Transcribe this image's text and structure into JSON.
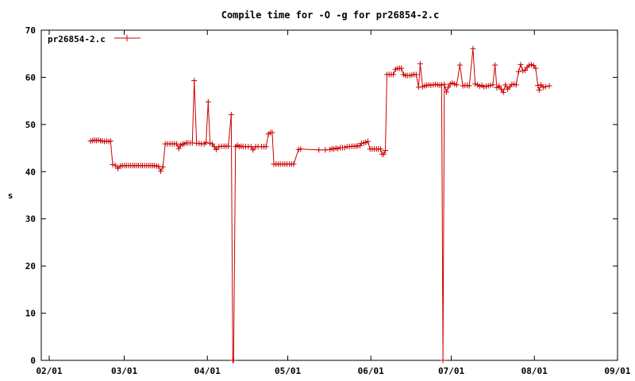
{
  "chart_data": {
    "type": "line",
    "title": "Compile time for -O -g for pr26854-2.c",
    "xlabel": "",
    "ylabel": "s",
    "ylim": [
      0,
      70
    ],
    "y_ticks": [
      "0",
      "10",
      "20",
      "30",
      "40",
      "50",
      "60",
      "70"
    ],
    "x_ticks": [
      "02/01",
      "03/01",
      "04/01",
      "05/01",
      "06/01",
      "07/01",
      "08/01",
      "09/01"
    ],
    "grid": false,
    "legend_position": "top-left",
    "series": [
      {
        "name": "pr26854-2.c",
        "color": "#cc0000",
        "points": [
          [
            15.4,
            46.5
          ],
          [
            16.2,
            46.6
          ],
          [
            16.9,
            46.7
          ],
          [
            17.6,
            46.6
          ],
          [
            18.3,
            46.7
          ],
          [
            19.1,
            46.6
          ],
          [
            19.8,
            46.5
          ],
          [
            20.6,
            46.4
          ],
          [
            21.4,
            46.5
          ],
          [
            22.2,
            46.4
          ],
          [
            22.9,
            46.5
          ],
          [
            23.7,
            41.5
          ],
          [
            24.6,
            41.4
          ],
          [
            25.6,
            40.7
          ],
          [
            26.6,
            41.2
          ],
          [
            27.3,
            41.3
          ],
          [
            28.1,
            41.3
          ],
          [
            28.8,
            41.3
          ],
          [
            29.6,
            41.3
          ],
          [
            30.4,
            41.3
          ],
          [
            31.2,
            41.3
          ],
          [
            31.9,
            41.3
          ],
          [
            32.6,
            41.3
          ],
          [
            33.3,
            41.3
          ],
          [
            34.1,
            41.3
          ],
          [
            34.8,
            41.3
          ],
          [
            35.6,
            41.3
          ],
          [
            36.4,
            41.3
          ],
          [
            37.2,
            41.3
          ],
          [
            37.9,
            41.3
          ],
          [
            38.6,
            41.3
          ],
          [
            39.3,
            41.3
          ],
          [
            40.1,
            41.2
          ],
          [
            40.8,
            41.1
          ],
          [
            41.6,
            40.1
          ],
          [
            42.4,
            41.0
          ],
          [
            43.3,
            45.9
          ],
          [
            44.1,
            45.9
          ],
          [
            45.0,
            45.9
          ],
          [
            45.9,
            45.9
          ],
          [
            46.7,
            45.9
          ],
          [
            47.5,
            45.9
          ],
          [
            48.3,
            44.9
          ],
          [
            49.0,
            45.6
          ],
          [
            49.7,
            45.8
          ],
          [
            50.3,
            45.9
          ],
          [
            51.1,
            46.1
          ],
          [
            51.8,
            46.1
          ],
          [
            52.6,
            46.1
          ],
          [
            53.4,
            46.1
          ],
          [
            54.1,
            59.3
          ],
          [
            55.0,
            46.0
          ],
          [
            55.9,
            46.0
          ],
          [
            56.8,
            45.9
          ],
          [
            57.8,
            45.9
          ],
          [
            58.5,
            46.2
          ],
          [
            59.3,
            54.8
          ],
          [
            60.0,
            46.0
          ],
          [
            60.8,
            45.9
          ],
          [
            61.6,
            45.3
          ],
          [
            62.3,
            44.7
          ],
          [
            63.3,
            45.3
          ],
          [
            64.3,
            45.4
          ],
          [
            65.2,
            45.4
          ],
          [
            66.0,
            45.4
          ],
          [
            66.8,
            45.4
          ],
          [
            67.9,
            52.1
          ],
          [
            68.5,
            0.0
          ],
          [
            68.8,
            0.0
          ],
          [
            69.5,
            45.3
          ],
          [
            70.2,
            45.6
          ],
          [
            70.9,
            45.3
          ],
          [
            71.6,
            45.4
          ],
          [
            72.3,
            45.3
          ],
          [
            73.3,
            45.3
          ],
          [
            74.3,
            45.3
          ],
          [
            75.3,
            45.3
          ],
          [
            76.0,
            44.6
          ],
          [
            77.0,
            45.3
          ],
          [
            77.9,
            45.3
          ],
          [
            79.2,
            45.3
          ],
          [
            80.1,
            45.3
          ],
          [
            80.9,
            45.3
          ],
          [
            81.8,
            48.0
          ],
          [
            82.6,
            48.3
          ],
          [
            83.2,
            48.3
          ],
          [
            83.8,
            41.6
          ],
          [
            84.6,
            41.6
          ],
          [
            85.4,
            41.6
          ],
          [
            86.2,
            41.6
          ],
          [
            87.1,
            41.6
          ],
          [
            87.9,
            41.6
          ],
          [
            88.7,
            41.6
          ],
          [
            89.6,
            41.6
          ],
          [
            90.4,
            41.6
          ],
          [
            91.2,
            41.6
          ],
          [
            93.0,
            44.7
          ],
          [
            93.8,
            44.8
          ],
          [
            100.6,
            44.6
          ],
          [
            103.0,
            44.6
          ],
          [
            104.7,
            44.7
          ],
          [
            105.5,
            44.9
          ],
          [
            106.2,
            44.8
          ],
          [
            107.0,
            45.0
          ],
          [
            107.7,
            44.9
          ],
          [
            108.6,
            45.1
          ],
          [
            109.4,
            45.1
          ],
          [
            110.2,
            45.1
          ],
          [
            111.1,
            45.3
          ],
          [
            112.0,
            45.3
          ],
          [
            112.9,
            45.4
          ],
          [
            113.7,
            45.4
          ],
          [
            114.5,
            45.4
          ],
          [
            115.1,
            45.5
          ],
          [
            115.9,
            45.5
          ],
          [
            116.5,
            46.0
          ],
          [
            117.4,
            46.1
          ],
          [
            118.1,
            46.2
          ],
          [
            118.9,
            46.4
          ],
          [
            119.7,
            44.8
          ],
          [
            120.5,
            44.8
          ],
          [
            121.3,
            44.8
          ],
          [
            122.1,
            44.8
          ],
          [
            122.8,
            44.8
          ],
          [
            123.6,
            44.8
          ],
          [
            124.2,
            43.7
          ],
          [
            124.8,
            43.7
          ],
          [
            125.4,
            44.5
          ],
          [
            126.0,
            60.6
          ],
          [
            126.8,
            60.6
          ],
          [
            127.6,
            60.6
          ],
          [
            128.4,
            60.6
          ],
          [
            129.2,
            61.7
          ],
          [
            130.0,
            61.9
          ],
          [
            130.7,
            61.9
          ],
          [
            131.4,
            61.9
          ],
          [
            132.2,
            60.6
          ],
          [
            132.9,
            60.4
          ],
          [
            133.6,
            60.4
          ],
          [
            134.5,
            60.4
          ],
          [
            135.3,
            60.5
          ],
          [
            136.1,
            60.6
          ],
          [
            136.9,
            60.6
          ],
          [
            137.8,
            57.9
          ],
          [
            138.4,
            62.9
          ],
          [
            139.3,
            58.0
          ],
          [
            140.1,
            58.2
          ],
          [
            140.8,
            58.3
          ],
          [
            141.6,
            58.4
          ],
          [
            142.4,
            58.3
          ],
          [
            143.3,
            58.4
          ],
          [
            144.1,
            58.5
          ],
          [
            144.9,
            58.4
          ],
          [
            145.7,
            58.3
          ],
          [
            146.4,
            58.4
          ],
          [
            146.9,
            0.0
          ],
          [
            147.4,
            58.5
          ],
          [
            148.2,
            56.9
          ],
          [
            148.9,
            57.9
          ],
          [
            149.6,
            58.6
          ],
          [
            150.4,
            58.8
          ],
          [
            151.2,
            58.6
          ],
          [
            152.0,
            58.4
          ],
          [
            153.2,
            62.6
          ],
          [
            154.3,
            58.2
          ],
          [
            155.1,
            58.3
          ],
          [
            155.9,
            58.3
          ],
          [
            156.7,
            58.2
          ],
          [
            158.1,
            66.1
          ],
          [
            158.9,
            58.6
          ],
          [
            159.8,
            58.4
          ],
          [
            160.6,
            58.1
          ],
          [
            161.4,
            58.3
          ],
          [
            162.2,
            58.0
          ],
          [
            163.0,
            58.1
          ],
          [
            163.8,
            58.2
          ],
          [
            164.6,
            58.3
          ],
          [
            165.5,
            58.4
          ],
          [
            166.3,
            62.6
          ],
          [
            167.0,
            57.8
          ],
          [
            167.8,
            58.2
          ],
          [
            168.6,
            57.5
          ],
          [
            169.4,
            56.8
          ],
          [
            170.2,
            58.4
          ],
          [
            171.0,
            57.5
          ],
          [
            171.8,
            58.0
          ],
          [
            172.6,
            58.5
          ],
          [
            173.4,
            58.5
          ],
          [
            174.2,
            58.4
          ],
          [
            175.1,
            61.2
          ],
          [
            175.9,
            62.7
          ],
          [
            176.7,
            61.4
          ],
          [
            177.5,
            61.5
          ],
          [
            178.3,
            62.1
          ],
          [
            179.1,
            62.6
          ],
          [
            179.9,
            62.7
          ],
          [
            180.7,
            62.5
          ],
          [
            181.5,
            61.9
          ],
          [
            182.3,
            58.3
          ],
          [
            182.8,
            57.3
          ],
          [
            183.5,
            58.4
          ],
          [
            184.3,
            57.9
          ],
          [
            185.1,
            58.0
          ],
          [
            186.6,
            58.2
          ]
        ]
      }
    ]
  }
}
